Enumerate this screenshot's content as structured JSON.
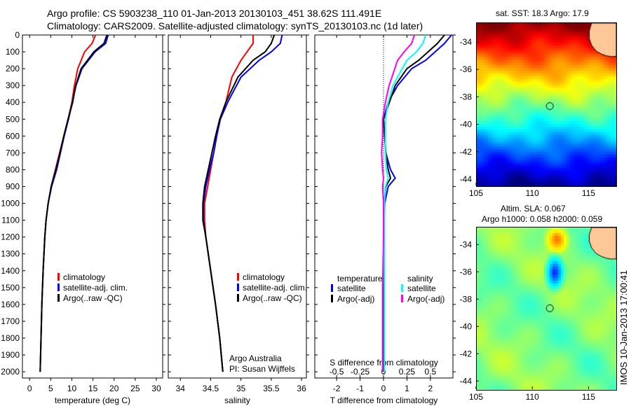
{
  "header": {
    "line1": "Argo profile: CS 5903238_110 01-Jan-2013 20130103_451 38.62S 111.491E",
    "line2": "Climatology: CARS2009. Satellite-adjusted climatology: synTS_20130103.nc (1d later)"
  },
  "annotation": {
    "line1": "Argo Australia",
    "line2": "PI: Susan Wijffels"
  },
  "side_text": "IMOS 10-Jan-2013 17:00:41",
  "chart_data": [
    {
      "id": "temperature",
      "type": "line",
      "xlabel": "temperature (deg C)",
      "xlim": [
        -1.7,
        31.5
      ],
      "xticks": [
        0,
        5,
        10,
        15,
        20,
        25,
        30
      ],
      "ylim": [
        2037,
        0
      ],
      "yticks": [
        0,
        100,
        200,
        300,
        400,
        500,
        600,
        700,
        800,
        900,
        1000,
        1100,
        1200,
        1300,
        1400,
        1500,
        1600,
        1700,
        1800,
        1900,
        2000
      ],
      "depth": [
        0,
        50,
        100,
        200,
        300,
        400,
        500,
        600,
        700,
        800,
        900,
        1000,
        1100,
        1200,
        1400,
        1600,
        1800,
        2000
      ],
      "series": [
        {
          "name": "climatology",
          "color": "#ff0000",
          "x": [
            15.6,
            14.8,
            13.0,
            11.4,
            10.6,
            10.0,
            9.1,
            8.1,
            7.1,
            6.1,
            5.1,
            4.4,
            3.9,
            3.6,
            3.2,
            2.9,
            2.7,
            2.5
          ]
        },
        {
          "name": "satellite-adj. clim.",
          "color": "#0000ff",
          "x": [
            18.6,
            18.0,
            15.5,
            12.4,
            11.0,
            10.1,
            9.2,
            8.2,
            7.3,
            6.4,
            5.2,
            4.4,
            3.9,
            3.6,
            3.2,
            2.9,
            2.7,
            2.5
          ]
        },
        {
          "name": "Argo(..raw -QC)",
          "color": "#000000",
          "x": [
            18.3,
            17.6,
            15.2,
            12.2,
            10.9,
            10.2,
            9.1,
            8.1,
            7.2,
            6.2,
            5.1,
            4.4,
            3.9,
            3.6,
            3.2,
            2.9,
            2.7,
            2.5
          ]
        }
      ]
    },
    {
      "id": "salinity",
      "type": "line",
      "xlabel": "salinity",
      "xlim": [
        33.8,
        36.08
      ],
      "xticks": [
        34,
        34.5,
        35,
        35.5,
        36
      ],
      "ylim": [
        2037,
        0
      ],
      "depth": [
        0,
        50,
        100,
        150,
        250,
        400,
        500,
        600,
        700,
        800,
        900,
        1000,
        1100,
        1200,
        1400,
        1600,
        1800,
        2000
      ],
      "series": [
        {
          "name": "climatology",
          "color": "#ff0000",
          "x": [
            35.2,
            35.2,
            35.1,
            35.0,
            34.85,
            34.75,
            34.65,
            34.6,
            34.55,
            34.5,
            34.45,
            34.4,
            34.4,
            34.42,
            34.5,
            34.58,
            34.65,
            34.7
          ]
        },
        {
          "name": "satellite-adj. clim.",
          "color": "#0000ff",
          "x": [
            35.68,
            35.65,
            35.5,
            35.3,
            35.0,
            34.78,
            34.66,
            34.6,
            34.55,
            34.48,
            34.42,
            34.38,
            34.38,
            34.42,
            34.5,
            34.58,
            34.65,
            34.7
          ]
        },
        {
          "name": "Argo(..raw -QC)",
          "color": "#000000",
          "x": [
            35.55,
            35.5,
            35.4,
            35.2,
            34.95,
            34.75,
            34.65,
            34.58,
            34.52,
            34.46,
            34.4,
            34.37,
            34.37,
            34.42,
            34.5,
            34.58,
            34.65,
            34.7
          ]
        }
      ]
    },
    {
      "id": "difference",
      "type": "line",
      "xlabel": "T difference from climatology",
      "x2label": "S difference from climatology",
      "xlim": [
        -2.93,
        2.96
      ],
      "xticks": [
        -2,
        -1,
        0,
        1,
        2
      ],
      "x2ticks": [
        -0.5,
        -0.25,
        0,
        0.25,
        0.5
      ],
      "s_scale": 4,
      "ylim": [
        2037,
        0
      ],
      "legend_headers": [
        "temperature",
        "salinity"
      ],
      "depth": [
        0,
        50,
        100,
        150,
        200,
        300,
        400,
        500,
        600,
        700,
        800,
        850,
        900,
        1000,
        1200,
        1500,
        2000
      ],
      "series": [
        {
          "name": "satellite",
          "group": "temperature",
          "color": "#0000ff",
          "x": [
            2.9,
            2.6,
            2.2,
            1.8,
            1.2,
            0.6,
            0.2,
            0.0,
            0.05,
            0.1,
            0.3,
            0.5,
            0.2,
            0.05,
            0.0,
            0.0,
            0.0
          ]
        },
        {
          "name": "Argo(-adj)",
          "group": "temperature",
          "color": "#000000",
          "x": [
            2.6,
            2.3,
            1.9,
            1.5,
            1.0,
            0.5,
            0.25,
            0.0,
            0.05,
            0.1,
            0.2,
            0.3,
            0.1,
            0.02,
            0.0,
            0.0,
            0.0
          ]
        },
        {
          "name": "satellite",
          "group": "salinity",
          "color": "#00ffff",
          "x": [
            0.45,
            0.42,
            0.35,
            0.25,
            0.2,
            0.1,
            0.05,
            0.02,
            0.02,
            0.02,
            0.03,
            0.05,
            0.02,
            0.01,
            0.01,
            0.01,
            0.01
          ]
        },
        {
          "name": "Argo(-adj)",
          "group": "salinity",
          "color": "#ff00ff",
          "x": [
            0.33,
            0.3,
            0.22,
            0.15,
            0.12,
            0.06,
            0.02,
            -0.01,
            -0.01,
            -0.02,
            -0.01,
            0.0,
            -0.01,
            0.0,
            0.0,
            -0.01,
            -0.01
          ]
        }
      ]
    },
    {
      "id": "sst-map",
      "type": "heatmap",
      "title": "sat. SST: 18.3  Argo: 17.9",
      "xlim": [
        105,
        117.4
      ],
      "ylim": [
        -44.46,
        -32.57
      ],
      "xticks": [
        105,
        110,
        115
      ],
      "yticks": [
        -34,
        -36,
        -38,
        -40,
        -42,
        -44
      ],
      "argo_position": [
        111.491,
        -38.62
      ]
    },
    {
      "id": "sla-map",
      "type": "heatmap",
      "title": "Altim. SLA: 0.067",
      "subtitle": "Argo h1000: 0.058 h2000: 0.059",
      "xlim": [
        105,
        117.4
      ],
      "ylim": [
        -44.6,
        -32.7
      ],
      "xticks": [
        105,
        110,
        115
      ],
      "yticks": [
        -34,
        -36,
        -38,
        -40,
        -42,
        -44
      ],
      "argo_position": [
        111.491,
        -38.62
      ]
    }
  ],
  "colors": {
    "land": "#ffc896"
  }
}
